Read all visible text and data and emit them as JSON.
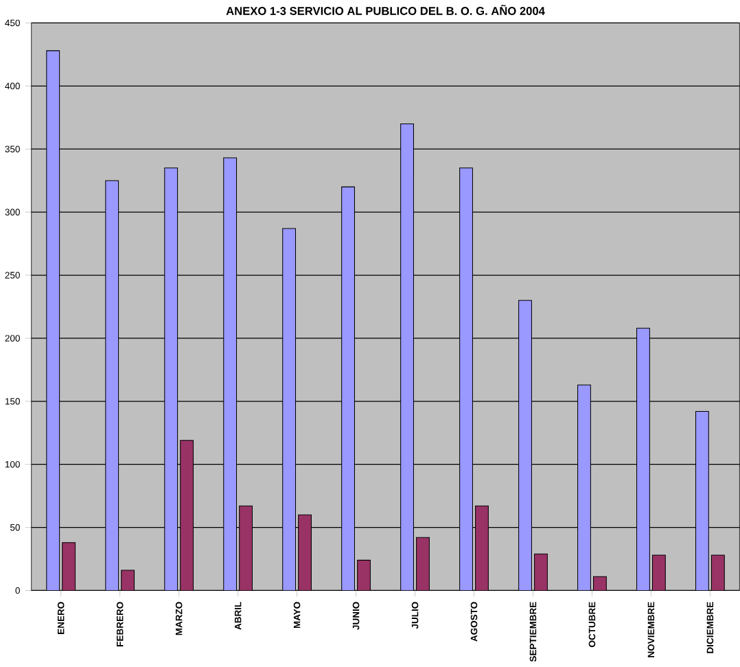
{
  "chart_data": {
    "type": "bar",
    "title": "ANEXO 1-3        SERVICIO AL PUBLICO DEL B. O. G.  AÑO 2004",
    "categories": [
      "ENERO",
      "FEBRERO",
      "MARZO",
      "ABRIL",
      "MAYO",
      "JUNIO",
      "JULIO",
      "AGOSTO",
      "SEPTIEMBRE",
      "OCTUBRE",
      "NOVIEMBRE",
      "DICIEMBRE"
    ],
    "series": [
      {
        "color": "#9999ff",
        "values": [
          428,
          325,
          335,
          343,
          287,
          320,
          370,
          335,
          230,
          163,
          208,
          142
        ]
      },
      {
        "color": "#993366",
        "values": [
          38,
          16,
          119,
          67,
          60,
          24,
          42,
          67,
          29,
          11,
          28,
          28
        ]
      }
    ],
    "ylim": [
      0,
      450
    ],
    "yticks": [
      0,
      50,
      100,
      150,
      200,
      250,
      300,
      350,
      400,
      450
    ],
    "grid": "y"
  }
}
